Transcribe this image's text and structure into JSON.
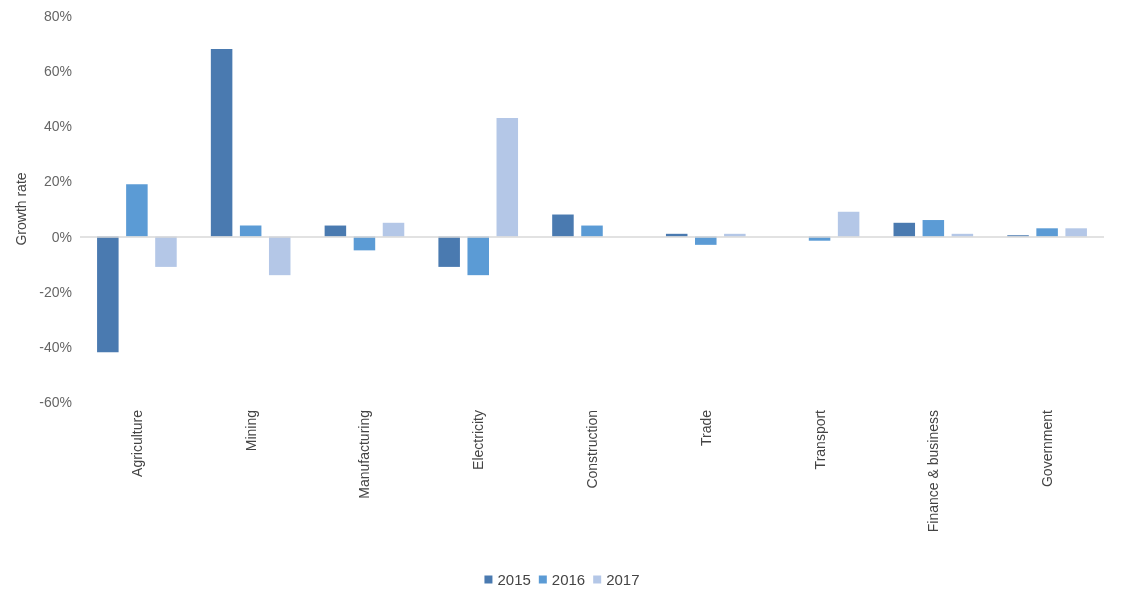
{
  "chart_data": {
    "type": "bar",
    "ylabel": "Growth rate",
    "categories": [
      "Agriculture",
      "Mining",
      "Manufacturing",
      "Electricity",
      "Construction",
      "Trade",
      "Transport",
      "Finance & business",
      "Government"
    ],
    "series": [
      {
        "name": "2015",
        "color": "#4a7ab0",
        "values": [
          -42,
          68,
          4,
          -11,
          8,
          1,
          0,
          5,
          0.5
        ]
      },
      {
        "name": "2016",
        "color": "#5b9bd5",
        "values": [
          19,
          4,
          -5,
          -14,
          4,
          -3,
          -1.5,
          6,
          3
        ]
      },
      {
        "name": "2017",
        "color": "#b4c7e7",
        "values": [
          -11,
          -14,
          5,
          43,
          0,
          1,
          9,
          1,
          3
        ]
      }
    ],
    "ylim": [
      -60,
      80
    ],
    "yticks": [
      {
        "value": -60,
        "label": "-60%"
      },
      {
        "value": -40,
        "label": "-40%"
      },
      {
        "value": -20,
        "label": "-20%"
      },
      {
        "value": 0,
        "label": "0%"
      },
      {
        "value": 20,
        "label": "20%"
      },
      {
        "value": 40,
        "label": "40%"
      },
      {
        "value": 60,
        "label": "60%"
      },
      {
        "value": 80,
        "label": "80%"
      }
    ],
    "ref_lines": [
      {
        "axis": "y",
        "value": 0,
        "color": "#d9d9d9"
      }
    ],
    "grid": false,
    "legend": "bottom"
  }
}
